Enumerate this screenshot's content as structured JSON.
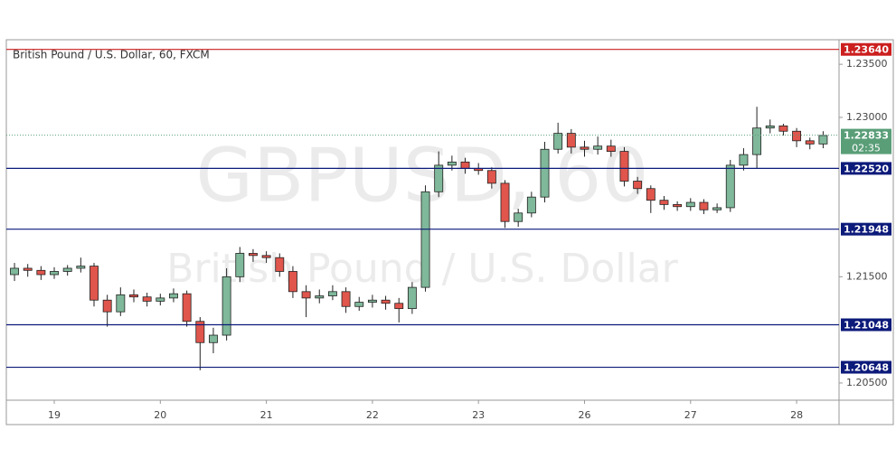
{
  "chart_data": {
    "type": "candlestick",
    "title": "British Pound / U.S. Dollar, 60, FXCM",
    "watermark": "GBPUSD, 60",
    "watermark_subtitle": "British Pound / U.S. Dollar",
    "x": [
      -0.375,
      -0.25,
      -0.125,
      0,
      0.125,
      0.25,
      0.375,
      0.5,
      0.625,
      0.75,
      0.875,
      1,
      1.125,
      1.25,
      1.375,
      1.5,
      1.625,
      1.75,
      1.875,
      2,
      2.125,
      2.25,
      2.375,
      2.5,
      2.625,
      2.75,
      2.875,
      3,
      3.125,
      3.25,
      3.375,
      3.5,
      3.625,
      3.75,
      3.875,
      4,
      4.125,
      4.25,
      4.375,
      4.5,
      4.625,
      4.75,
      4.875,
      5,
      5.125,
      5.25,
      5.375,
      5.5,
      5.625,
      5.75,
      5.875,
      6,
      6.125,
      6.25,
      6.375,
      6.5,
      6.625,
      6.75,
      6.875,
      7,
      7.125,
      7.25
    ],
    "open": [
      1.2152,
      1.2158,
      1.2156,
      1.2152,
      1.2155,
      1.2158,
      1.216,
      1.2128,
      1.2117,
      1.2133,
      1.2131,
      1.2127,
      1.213,
      1.2134,
      1.2108,
      1.2088,
      1.2095,
      1.215,
      1.2172,
      1.217,
      1.2168,
      1.2155,
      1.2136,
      1.213,
      1.2132,
      1.2136,
      1.2122,
      1.2126,
      1.2128,
      1.2125,
      1.212,
      1.214,
      1.223,
      1.2255,
      1.2258,
      1.2252,
      1.225,
      1.2238,
      1.2202,
      1.221,
      1.2225,
      1.227,
      1.2285,
      1.2272,
      1.227,
      1.2273,
      1.2268,
      1.224,
      1.2233,
      1.2222,
      1.2218,
      1.2216,
      1.222,
      1.2213,
      1.2215,
      1.2255,
      1.2265,
      1.229,
      1.2292,
      1.2287,
      1.2278,
      1.2275
    ],
    "high": [
      1.2163,
      1.2162,
      1.216,
      1.2159,
      1.2161,
      1.2168,
      1.2163,
      1.2133,
      1.214,
      1.2138,
      1.2135,
      1.2134,
      1.2139,
      1.2137,
      1.2112,
      1.2102,
      1.2158,
      1.2178,
      1.2176,
      1.2174,
      1.2172,
      1.216,
      1.2142,
      1.2138,
      1.2142,
      1.214,
      1.2131,
      1.2133,
      1.2132,
      1.213,
      1.2145,
      1.2236,
      1.2268,
      1.2264,
      1.2262,
      1.2257,
      1.2253,
      1.2241,
      1.2214,
      1.223,
      1.2277,
      1.2295,
      1.2289,
      1.2278,
      1.2282,
      1.2279,
      1.2272,
      1.2244,
      1.2236,
      1.2226,
      1.2221,
      1.2224,
      1.2223,
      1.2219,
      1.226,
      1.2271,
      1.231,
      1.2298,
      1.2294,
      1.229,
      1.2281,
      1.2287
    ],
    "low": [
      1.2146,
      1.215,
      1.2147,
      1.2148,
      1.2151,
      1.2154,
      1.2122,
      1.2103,
      1.2113,
      1.2126,
      1.2122,
      1.2123,
      1.2126,
      1.2103,
      1.2062,
      1.2078,
      1.209,
      1.2145,
      1.2164,
      1.2163,
      1.215,
      1.213,
      1.2112,
      1.2125,
      1.2128,
      1.2116,
      1.2118,
      1.2121,
      1.2119,
      1.2107,
      1.2115,
      1.2136,
      1.2225,
      1.225,
      1.2247,
      1.2246,
      1.2233,
      1.2196,
      1.2197,
      1.2206,
      1.222,
      1.2266,
      1.2266,
      1.2263,
      1.2265,
      1.2263,
      1.2235,
      1.2228,
      1.221,
      1.2213,
      1.2212,
      1.2212,
      1.2209,
      1.221,
      1.2211,
      1.225,
      1.2252,
      1.2285,
      1.2283,
      1.2272,
      1.227,
      1.2271
    ],
    "close": [
      1.2158,
      1.2156,
      1.2152,
      1.2155,
      1.2158,
      1.216,
      1.2128,
      1.2117,
      1.2133,
      1.2131,
      1.2127,
      1.213,
      1.2134,
      1.2108,
      1.2088,
      1.2095,
      1.215,
      1.2172,
      1.217,
      1.2168,
      1.2155,
      1.2136,
      1.213,
      1.2132,
      1.2136,
      1.2122,
      1.2126,
      1.2128,
      1.2125,
      1.212,
      1.214,
      1.223,
      1.2255,
      1.2258,
      1.2252,
      1.225,
      1.2238,
      1.2202,
      1.221,
      1.2225,
      1.227,
      1.2285,
      1.2272,
      1.227,
      1.2273,
      1.2268,
      1.224,
      1.2233,
      1.2222,
      1.2218,
      1.2216,
      1.222,
      1.2213,
      1.2215,
      1.2255,
      1.2265,
      1.229,
      1.2292,
      1.2287,
      1.2278,
      1.2275,
      1.2283
    ],
    "up_color": "#7fb89a",
    "down_color": "#e0554c",
    "xlim": [
      -0.452,
      7.4
    ],
    "xticks": [
      {
        "value": 0,
        "label": "19"
      },
      {
        "value": 1,
        "label": "20"
      },
      {
        "value": 2,
        "label": "21"
      },
      {
        "value": 3,
        "label": "22"
      },
      {
        "value": 4,
        "label": "23"
      },
      {
        "value": 5,
        "label": "26"
      },
      {
        "value": 6,
        "label": "27"
      },
      {
        "value": 7,
        "label": "28"
      }
    ],
    "ylim": [
      1.20338,
      1.23731
    ],
    "yticks": [
      {
        "value": 1.205,
        "label": "1.20500"
      },
      {
        "value": 1.215,
        "label": "1.21500"
      },
      {
        "value": 1.23,
        "label": "1.23000"
      },
      {
        "value": 1.235,
        "label": "1.23500"
      }
    ],
    "levels": [
      {
        "value": 1.2364,
        "label": "1.23640",
        "color": "#cc1f1f"
      },
      {
        "value": 1.2252,
        "label": "1.22520",
        "color": "#0c1a7a"
      },
      {
        "value": 1.21948,
        "label": "1.21948",
        "color": "#0c1a7a"
      },
      {
        "value": 1.21048,
        "label": "1.21048",
        "color": "#0c1a7a"
      },
      {
        "value": 1.20648,
        "label": "1.20648",
        "color": "#0c1a7a"
      }
    ],
    "last_price": {
      "value": 1.22833,
      "label": "1.22833",
      "countdown": "02:35",
      "color": "#5a9e78"
    }
  }
}
